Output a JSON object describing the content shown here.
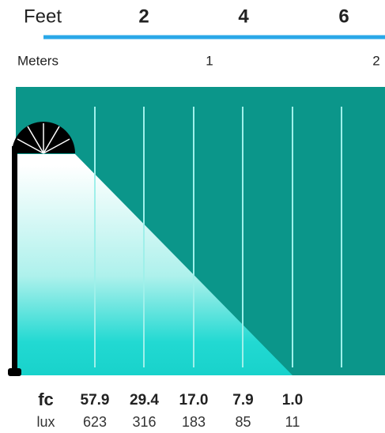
{
  "feet": {
    "label": "Feet",
    "ticks": [
      "2",
      "4",
      "6"
    ]
  },
  "meters": {
    "label": "Meters",
    "ticks": [
      "1",
      "2"
    ]
  },
  "fc": {
    "label": "fc",
    "values": [
      "57.9",
      "29.4",
      "17.0",
      "7.9",
      "1.0"
    ]
  },
  "lux": {
    "label": "lux",
    "values": [
      "623",
      "316",
      "183",
      "85",
      "11"
    ]
  }
}
